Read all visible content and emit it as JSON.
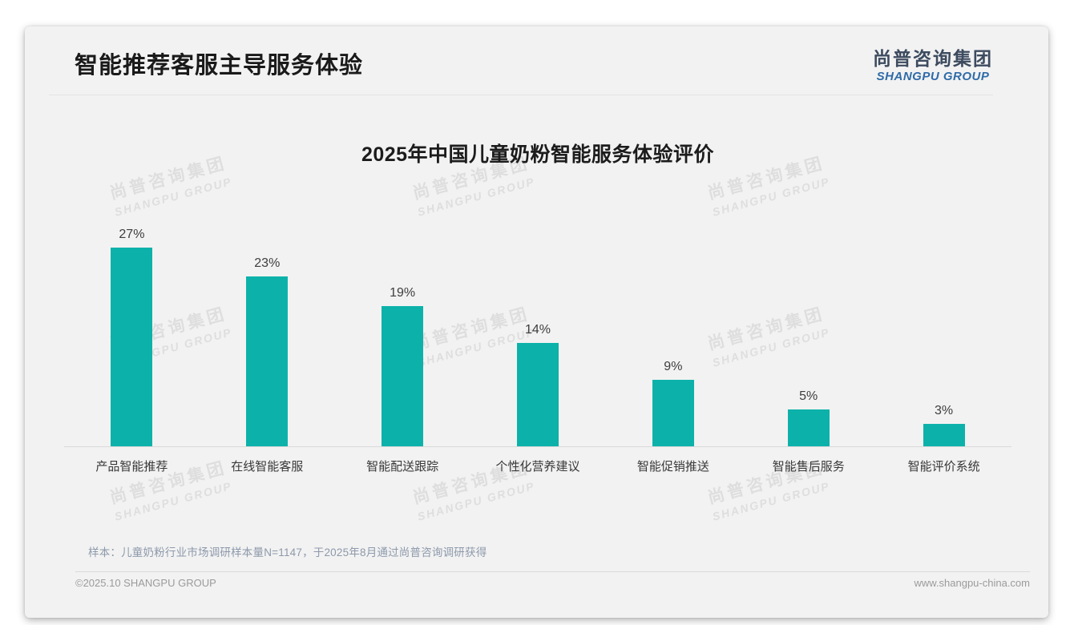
{
  "page": {
    "header": {
      "title": "智能推荐客服主导服务体验"
    },
    "logo": {
      "cn": "尚普咨询集团",
      "en": "SHANGPU GROUP"
    },
    "watermark": {
      "line1": "尚普咨询集团",
      "line2": "SHANGPU GROUP"
    },
    "source_note": "样本：儿童奶粉行业市场调研样本量N=1147，于2025年8月通过尚普咨询调研获得",
    "footer": {
      "left": "©2025.10 SHANGPU GROUP",
      "right": "www.shangpu-china.com"
    }
  },
  "colors": {
    "bar_teal": "#0cb2aa",
    "logo_blue": "#2e6ba8",
    "logo_dark": "#3d4b5f",
    "card_bg": "#f2f2f2"
  },
  "chart_data": {
    "type": "bar",
    "title": "2025年中国儿童奶粉智能服务体验评价",
    "categories": [
      "产品智能推荐",
      "在线智能客服",
      "智能配送跟踪",
      "个性化营养建议",
      "智能促销推送",
      "智能售后服务",
      "智能评价系统"
    ],
    "values": [
      27,
      23,
      19,
      14,
      9,
      5,
      3
    ],
    "value_labels": [
      "27%",
      "23%",
      "19%",
      "14%",
      "9%",
      "5%",
      "3%"
    ],
    "xlabel": "",
    "ylabel": "",
    "ylim": [
      0,
      30
    ],
    "grid": false,
    "legend": false,
    "value_labels_position": "above-bars",
    "bar_color": "#0cb2aa"
  }
}
